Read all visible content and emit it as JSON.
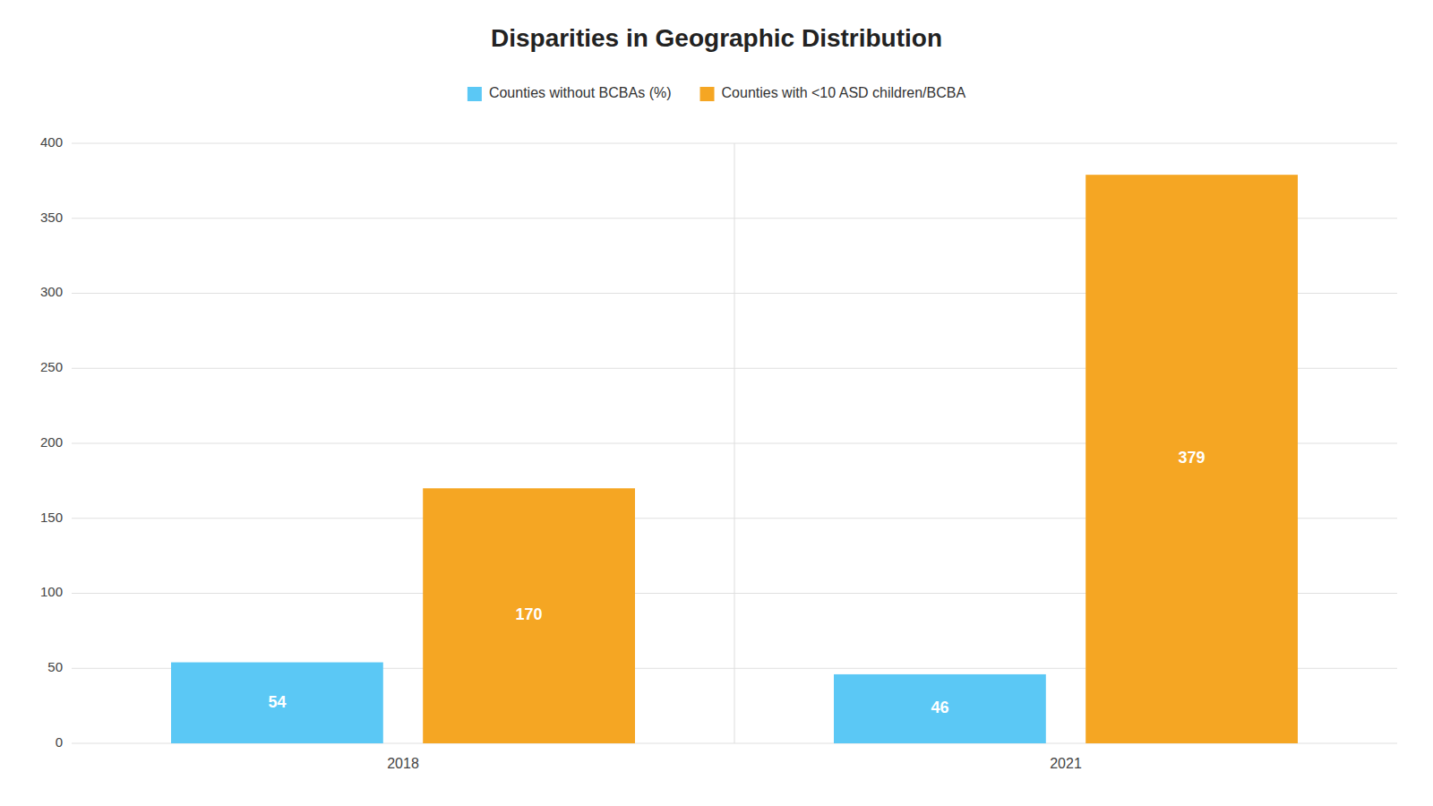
{
  "chart_data": {
    "type": "bar",
    "title": "Disparities in Geographic Distribution",
    "categories": [
      "2018",
      "2021"
    ],
    "series": [
      {
        "name": "Counties without BCBAs (%)",
        "color": "#5BC8F5",
        "values": [
          54,
          46
        ]
      },
      {
        "name": "Counties with <10 ASD children/BCBA",
        "color": "#F5A623",
        "values": [
          170,
          379
        ]
      }
    ],
    "ylim": [
      0,
      400
    ],
    "yticks": [
      0,
      50,
      100,
      150,
      200,
      250,
      300,
      350,
      400
    ],
    "grid": true,
    "legend": "top",
    "data_labels": true
  }
}
